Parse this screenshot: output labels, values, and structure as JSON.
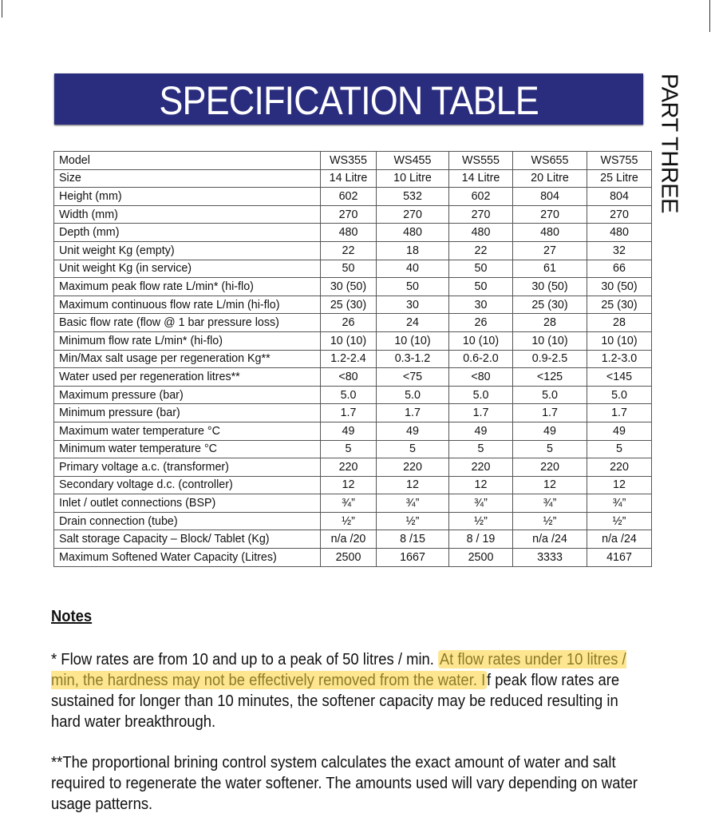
{
  "title": "SPECIFICATION TABLE",
  "side_label": "PART THREE",
  "colors": {
    "banner": "#2a2d7e",
    "highlight": "#fde68f"
  },
  "table": {
    "rows": [
      {
        "label": "Model",
        "values": [
          "WS355",
          "WS455",
          "WS555",
          "WS655",
          "WS755"
        ]
      },
      {
        "label": "Size",
        "values": [
          "14 Litre",
          "10 Litre",
          "14 Litre",
          "20 Litre",
          "25 Litre"
        ]
      },
      {
        "label": "Height (mm)",
        "values": [
          "602",
          "532",
          "602",
          "804",
          "804"
        ]
      },
      {
        "label": "Width (mm)",
        "values": [
          "270",
          "270",
          "270",
          "270",
          "270"
        ]
      },
      {
        "label": "Depth (mm)",
        "values": [
          "480",
          "480",
          "480",
          "480",
          "480"
        ]
      },
      {
        "label": "Unit weight Kg (empty)",
        "values": [
          "22",
          "18",
          "22",
          "27",
          "32"
        ]
      },
      {
        "label": "Unit weight Kg (in service)",
        "values": [
          "50",
          "40",
          "50",
          "61",
          "66"
        ]
      },
      {
        "label": "Maximum peak flow rate L/min* (hi-flo)",
        "values": [
          "30 (50)",
          "50",
          "50",
          "30 (50)",
          "30 (50)"
        ]
      },
      {
        "label": "Maximum continuous flow rate L/min (hi-flo)",
        "values": [
          "25 (30)",
          "30",
          "30",
          "25 (30)",
          "25 (30)"
        ]
      },
      {
        "label": "Basic flow rate (flow @ 1 bar pressure loss)",
        "values": [
          "26",
          "24",
          "26",
          "28",
          "28"
        ]
      },
      {
        "label": "Minimum flow rate L/min* (hi-flo)",
        "values": [
          "10 (10)",
          "10 (10)",
          "10 (10)",
          "10 (10)",
          "10 (10)"
        ]
      },
      {
        "label": "Min/Max salt usage per regeneration Kg**",
        "values": [
          "1.2-2.4",
          "0.3-1.2",
          "0.6-2.0",
          "0.9-2.5",
          "1.2-3.0"
        ]
      },
      {
        "label": "Water used per regeneration litres**",
        "values": [
          "<80",
          "<75",
          "<80",
          "<125",
          "<145"
        ]
      },
      {
        "label": "Maximum pressure (bar)",
        "values": [
          "5.0",
          "5.0",
          "5.0",
          "5.0",
          "5.0"
        ]
      },
      {
        "label": "Minimum pressure (bar)",
        "values": [
          "1.7",
          "1.7",
          "1.7",
          "1.7",
          "1.7"
        ]
      },
      {
        "label": "Maximum water temperature °C",
        "values": [
          "49",
          "49",
          "49",
          "49",
          "49"
        ]
      },
      {
        "label": "Minimum water temperature °C",
        "values": [
          "5",
          "5",
          "5",
          "5",
          "5"
        ]
      },
      {
        "label": "Primary voltage a.c. (transformer)",
        "values": [
          "220",
          "220",
          "220",
          "220",
          "220"
        ]
      },
      {
        "label": "Secondary voltage d.c. (controller)",
        "values": [
          "12",
          "12",
          "12",
          "12",
          "12"
        ]
      },
      {
        "label": "Inlet / outlet connections (BSP)",
        "values": [
          "¾”",
          "¾”",
          "¾”",
          "¾”",
          "¾”"
        ]
      },
      {
        "label": "Drain connection (tube)",
        "values": [
          "½”",
          "½”",
          "½”",
          "½”",
          "½”"
        ]
      },
      {
        "label": "Salt storage Capacity – Block/ Tablet (Kg)",
        "values": [
          "n/a /20",
          "8 /15",
          "8 / 19",
          "n/a /24",
          "n/a /24"
        ]
      },
      {
        "label": "Maximum Softened Water Capacity (Litres)",
        "values": [
          "2500",
          "1667",
          "2500",
          "3333",
          "4167"
        ]
      }
    ]
  },
  "notes": {
    "title": "Notes",
    "note1_pre": "* Flow rates are from 10 and up to a peak of 50 litres / min. ",
    "note1_highlight": "At flow rates under 10 litres / min, the hardness may not be effectively removed from the water. I",
    "note1_post": "f peak flow rates are sustained for longer than 10 minutes, the softener capacity may be reduced resulting in hard water breakthrough.",
    "note2": "**The proportional brining control system calculates the exact amount of water and salt required to regenerate the water softener. The amounts used will vary depending on water usage patterns."
  }
}
